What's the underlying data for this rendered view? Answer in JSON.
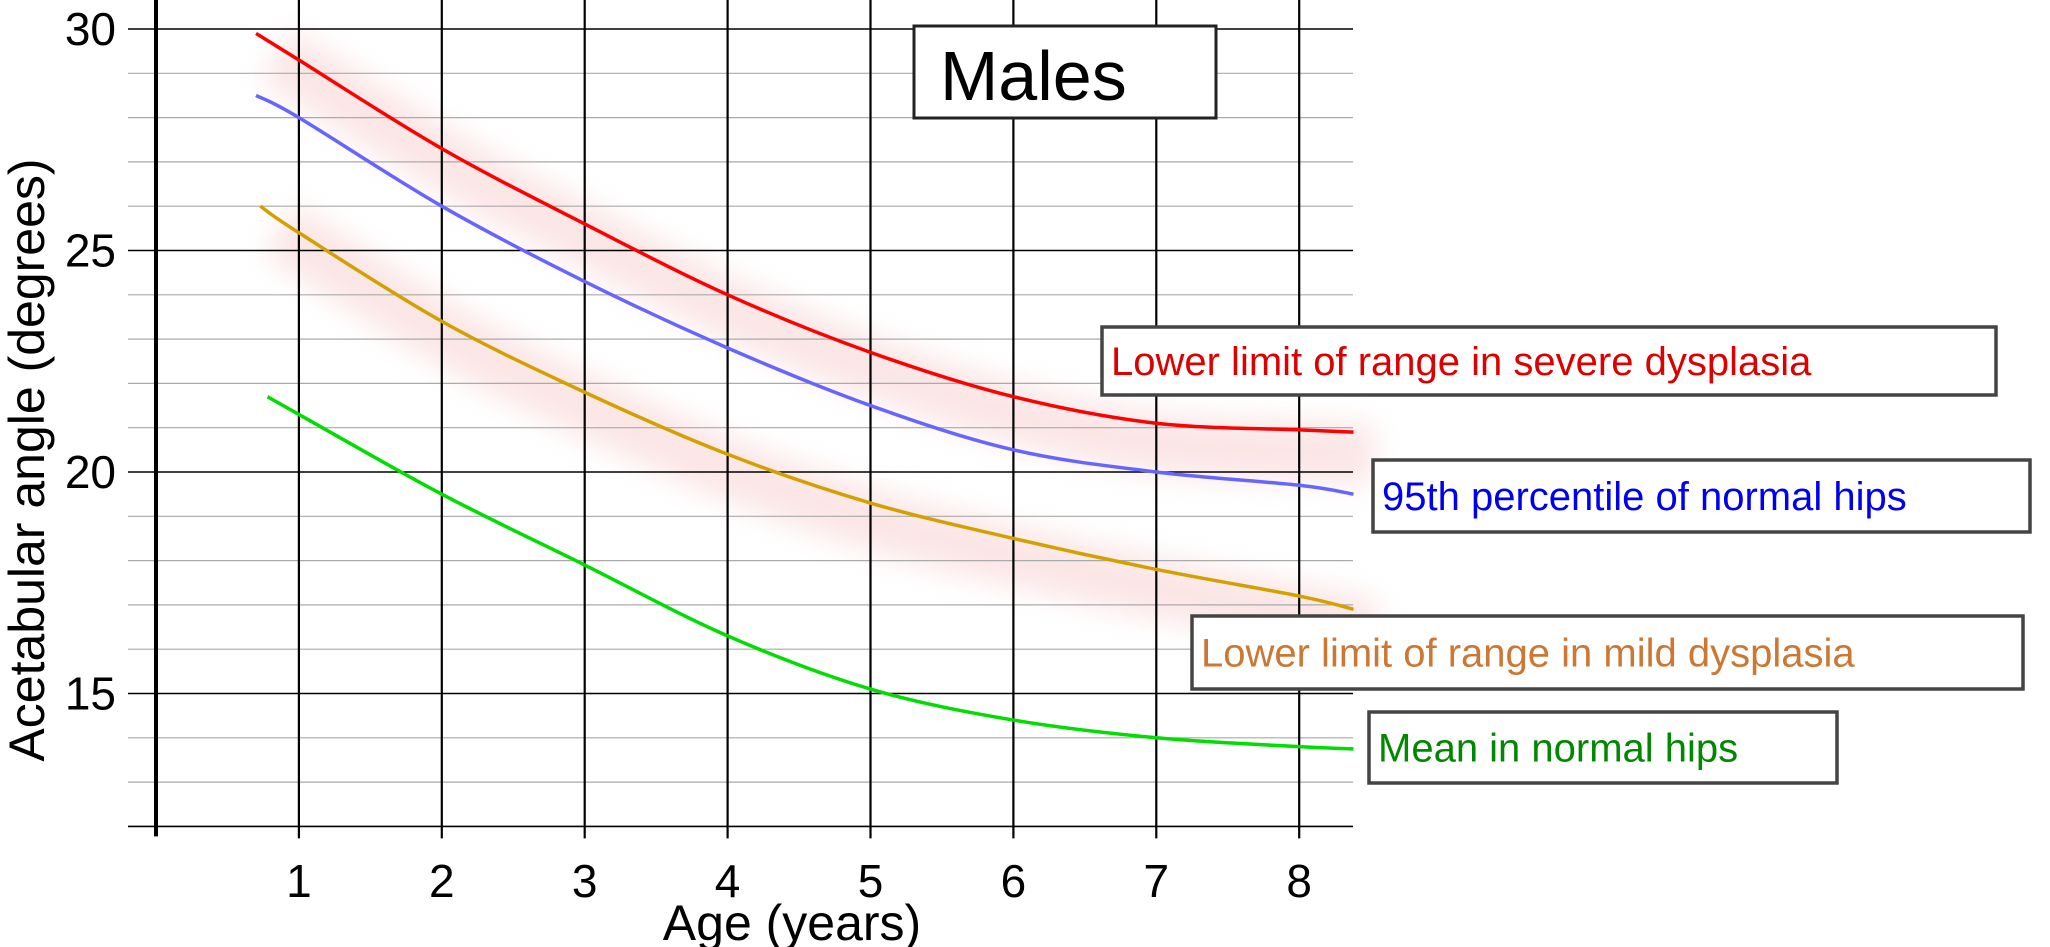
{
  "chart_data": {
    "type": "line",
    "title": "Males",
    "xlabel": "Age (years)",
    "ylabel": "Acetabular angle (degrees)",
    "xlim": [
      0,
      8.38
    ],
    "ylim": [
      12,
      30
    ],
    "x_ticks": [
      "1",
      "2",
      "3",
      "4",
      "5",
      "6",
      "7",
      "8"
    ],
    "y_ticks": [
      "15",
      "20",
      "25",
      "30"
    ],
    "grid": {
      "major_y": true,
      "minor_y_every": 1,
      "vertical_per_year": true
    },
    "series": [
      {
        "name": "Lower limit of range in severe dysplasia",
        "color": "#ff0000",
        "label_color": "#dd0000",
        "x": [
          0.7,
          1,
          2,
          3,
          4,
          5,
          6,
          7,
          8,
          8.38
        ],
        "y": [
          29.9,
          29.3,
          27.3,
          25.6,
          24.0,
          22.7,
          21.7,
          21.1,
          20.95,
          20.9
        ]
      },
      {
        "name": "95th percentile of normal hips",
        "color": "#6666ff",
        "label_color": "#0000ee",
        "x": [
          0.7,
          1,
          2,
          3,
          4,
          5,
          6,
          7,
          8,
          8.38
        ],
        "y": [
          28.5,
          28.0,
          26.0,
          24.3,
          22.8,
          21.5,
          20.5,
          20.0,
          19.7,
          19.5
        ]
      },
      {
        "name": "Lower limit of range in mild dysplasia",
        "color": "#d4a000",
        "label_color": "#cc7733",
        "x": [
          0.73,
          1,
          2,
          3,
          4,
          5,
          6,
          7,
          8,
          8.38
        ],
        "y": [
          26.0,
          25.4,
          23.4,
          21.8,
          20.4,
          19.3,
          18.5,
          17.8,
          17.2,
          16.9
        ]
      },
      {
        "name": "Mean in normal hips",
        "color": "#00dd00",
        "label_color": "#008800",
        "x": [
          0.78,
          1,
          2,
          3,
          4,
          5,
          6,
          7,
          8,
          8.38
        ],
        "y": [
          21.7,
          21.3,
          19.5,
          17.9,
          16.3,
          15.1,
          14.4,
          14.0,
          13.8,
          13.75
        ]
      }
    ]
  }
}
